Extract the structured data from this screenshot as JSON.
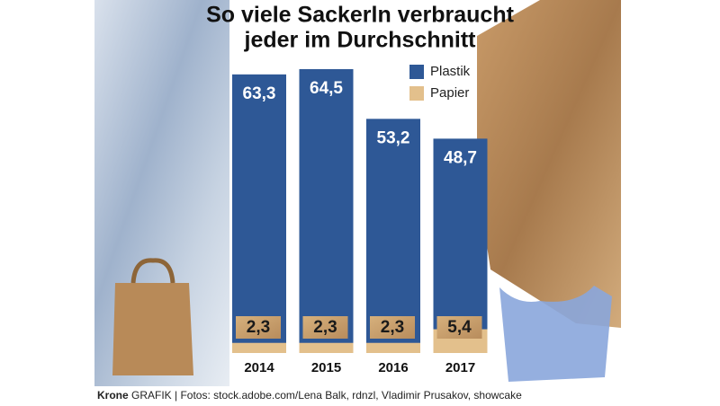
{
  "chart_data": {
    "type": "bar",
    "title": [
      "So viele Sackerln verbraucht",
      "jeder im Durchschnitt"
    ],
    "categories": [
      "2014",
      "2015",
      "2016",
      "2017"
    ],
    "series": [
      {
        "name": "Plastik",
        "color": "#2e5896",
        "values": [
          63.3,
          64.5,
          53.2,
          48.7
        ],
        "value_labels": [
          "63,3",
          "64,5",
          "53,2",
          "48,7"
        ]
      },
      {
        "name": "Papier",
        "color": "#e3c08c",
        "values": [
          2.3,
          2.3,
          2.3,
          5.4
        ],
        "value_labels": [
          "2,3",
          "2,3",
          "2,3",
          "5,4"
        ]
      }
    ],
    "source_brand": "Krone",
    "source": "GRAFIK | Fotos: stock.adobe.com/Lena Balk, rdnzl, Vladimir Prusakov, showcake"
  }
}
